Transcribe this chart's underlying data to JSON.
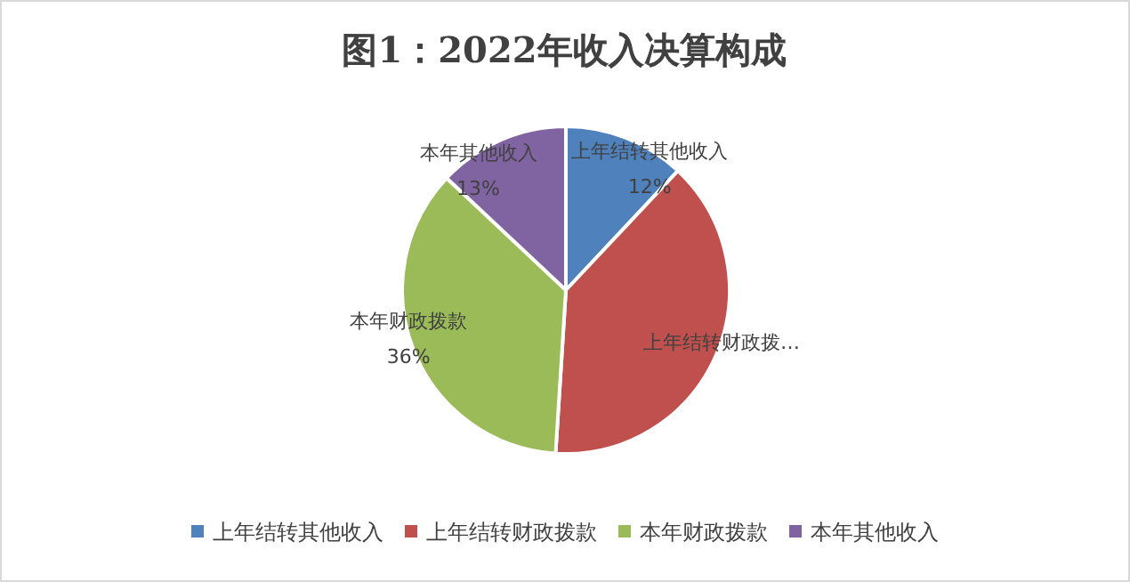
{
  "chart_data": {
    "type": "pie",
    "title": "图1：2022年收入决算构成",
    "categories": [
      "上年结转其他收入",
      "上年结转财政拨款",
      "本年财政拨款",
      "本年其他收入"
    ],
    "values": [
      12,
      39,
      36,
      13
    ],
    "colors": [
      "#4f81bd",
      "#c0504d",
      "#9bbb59",
      "#8064a2"
    ],
    "value_labels": [
      "上年结转其他收入\n12%",
      "上年结转财政拨…",
      "本年财政拨款\n36%",
      "本年其他收入\n13%"
    ],
    "legend": "bottom"
  }
}
